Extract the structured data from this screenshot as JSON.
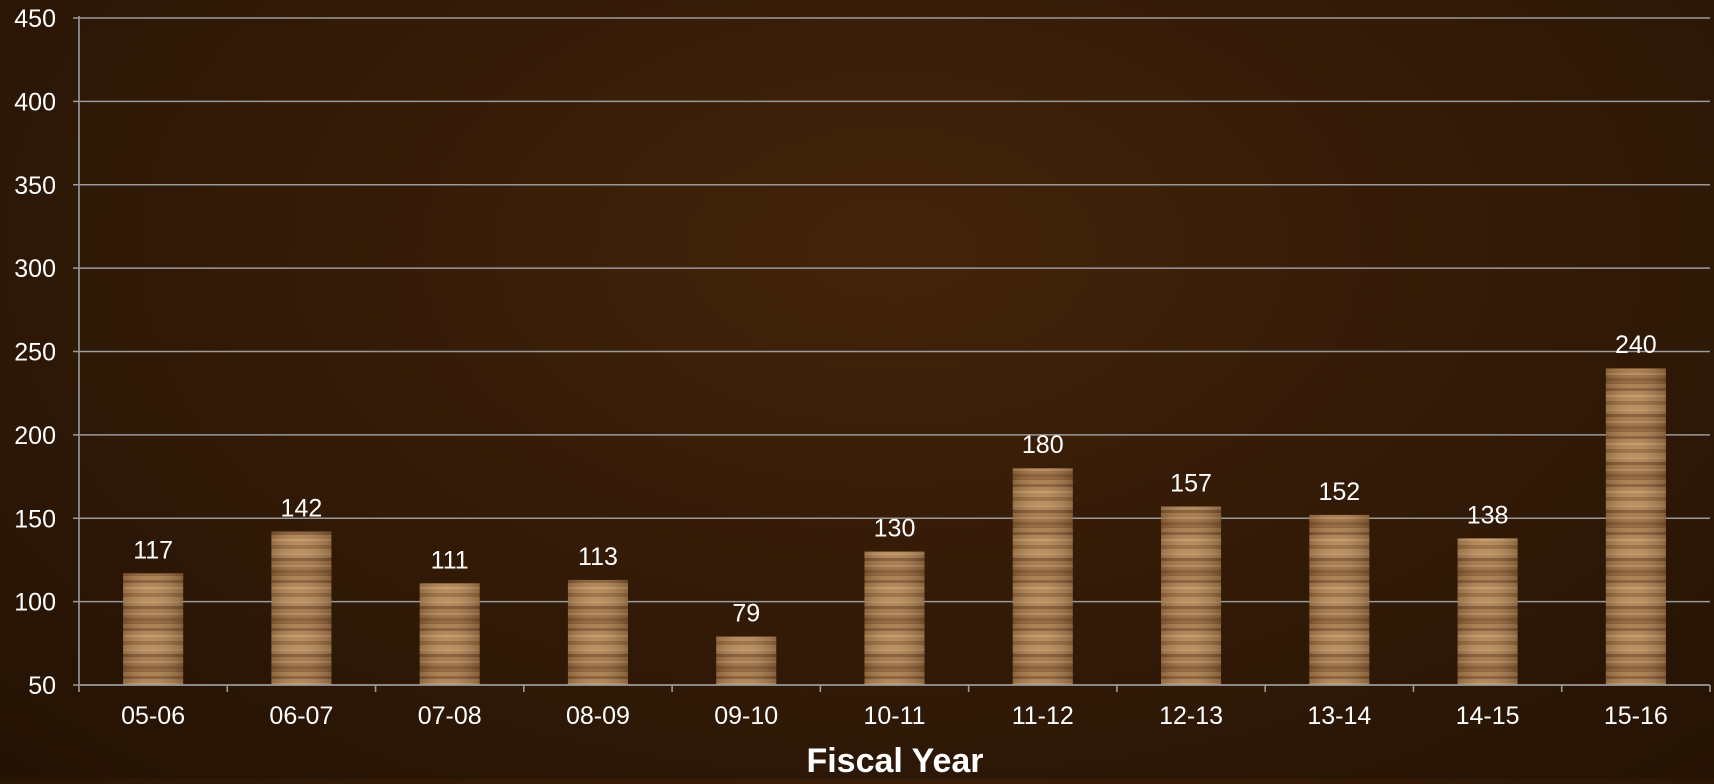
{
  "chart_data": {
    "type": "bar",
    "title": "",
    "xlabel": "Fiscal Year",
    "ylabel": "",
    "ylim": [
      50,
      450
    ],
    "yticks": [
      50,
      100,
      150,
      200,
      250,
      300,
      350,
      400,
      450
    ],
    "grid": true,
    "legend": "none",
    "categories": [
      "05-06",
      "06-07",
      "07-08",
      "08-09",
      "09-10",
      "10-11",
      "11-12",
      "12-13",
      "13-14",
      "14-15",
      "15-16"
    ],
    "values": [
      117,
      142,
      111,
      113,
      79,
      130,
      180,
      157,
      152,
      138,
      240
    ],
    "data_labels": [
      "117",
      "142",
      "111",
      "113",
      "79",
      "130",
      "180",
      "157",
      "152",
      "138",
      "240"
    ]
  },
  "colors": {
    "bar_base": "#9c6b3c",
    "bar_light": "#c49a66",
    "bar_dark": "#5e3a1c",
    "gridline": "#9a9a9a",
    "text": "#ffffff"
  }
}
